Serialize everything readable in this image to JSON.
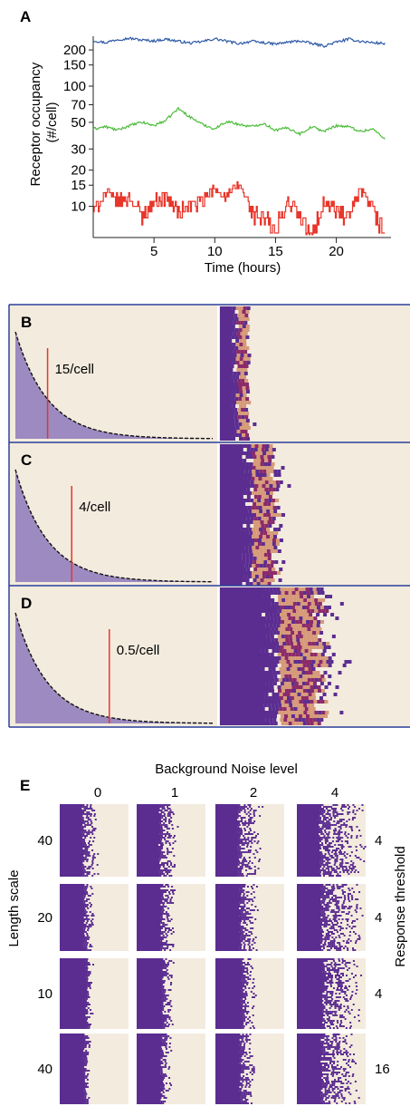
{
  "panel_a": {
    "letter": "A",
    "ylabel_line1": "Receptor occupancy",
    "ylabel_line2": "(#/cell)",
    "xlabel": "Time (hours)"
  },
  "panels_bcd": [
    {
      "letter": "B",
      "threshold_label": "15/cell",
      "threshold_frac": 0.24,
      "front_frac": 0.2
    },
    {
      "letter": "C",
      "threshold_label": "4/cell",
      "threshold_frac": 0.42,
      "front_frac": 0.41
    },
    {
      "letter": "D",
      "threshold_label": "0.5/cell",
      "threshold_frac": 0.7,
      "front_frac": 0.76
    }
  ],
  "panel_e": {
    "letter": "E",
    "title": "Background Noise level",
    "noise_levels": [
      "0",
      "1",
      "2",
      "4"
    ],
    "row_label_left": "Length scale",
    "row_label_right": "Response threshold",
    "length_scales": [
      "40",
      "20",
      "10",
      "40"
    ],
    "response_thresholds": [
      "4",
      "4",
      "4",
      "16"
    ]
  },
  "colors": {
    "purple": "#5b2d91",
    "cream": "#f3ebde",
    "light_purple": "#9c8ac0",
    "red": "#e8362a",
    "blue": "#2f5aa8",
    "green": "#4cbc3a",
    "tan": "#d69a79",
    "frame": "#2a3f9c"
  },
  "chart_data": [
    {
      "type": "line",
      "xlabel": "Time (hours)",
      "ylabel": "Receptor occupancy (#/cell)",
      "log_y": true,
      "xlim": [
        0,
        24.5
      ],
      "ylim": [
        5.5,
        260
      ],
      "x_ticks": [
        5,
        10,
        15,
        20
      ],
      "y_ticks": [
        10,
        15,
        20,
        30,
        50,
        70,
        100,
        150,
        200
      ],
      "series": [
        {
          "color": "#2f5aa8",
          "x": [
            0,
            1,
            2,
            3,
            4,
            5,
            6,
            7,
            8,
            9,
            10,
            11,
            12,
            13,
            14,
            15,
            16,
            17,
            18,
            19,
            20,
            21,
            22,
            23,
            24
          ],
          "values": [
            240,
            230,
            245,
            250,
            242,
            238,
            246,
            236,
            228,
            235,
            248,
            236,
            226,
            236,
            230,
            224,
            232,
            238,
            226,
            216,
            232,
            246,
            236,
            230,
            226
          ]
        },
        {
          "color": "#4cbc3a",
          "x": [
            0,
            1,
            2,
            3,
            4,
            5,
            6,
            7,
            8,
            9,
            10,
            11,
            12,
            13,
            14,
            15,
            16,
            17,
            18,
            19,
            20,
            21,
            22,
            23,
            24
          ],
          "values": [
            44,
            46,
            43,
            47,
            50,
            47,
            52,
            65,
            55,
            48,
            44,
            51,
            48,
            46,
            49,
            43,
            45,
            40,
            46,
            42,
            47,
            46,
            42,
            44,
            36
          ]
        },
        {
          "color": "#e8362a",
          "x": [
            0,
            1,
            2,
            3,
            4,
            5,
            6,
            7,
            8,
            9,
            10,
            11,
            12,
            13,
            14,
            15,
            16,
            17,
            18,
            19,
            20,
            21,
            22,
            23,
            24
          ],
          "values": [
            9,
            13,
            11,
            12,
            8,
            11,
            12,
            9,
            10,
            11,
            14,
            12,
            15,
            9,
            8,
            6,
            11,
            8,
            5,
            11,
            9,
            8,
            13,
            9,
            6
          ]
        }
      ]
    }
  ]
}
